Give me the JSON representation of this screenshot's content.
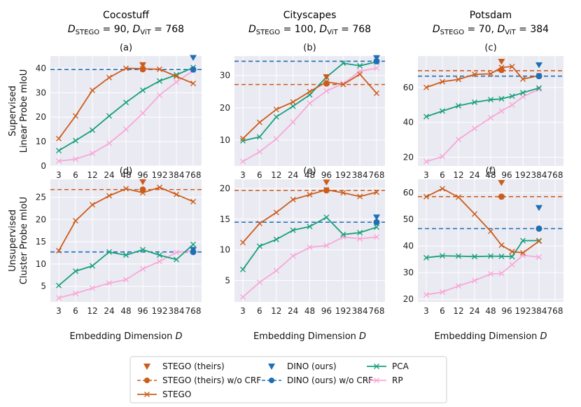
{
  "figure": {
    "column_titles": [
      {
        "name": "Cocostuff",
        "sub_a": "STEGO",
        "val_a": "90",
        "sub_b": "ViT",
        "val_b": "768"
      },
      {
        "name": "Cityscapes",
        "sub_a": "STEGO",
        "val_a": "100",
        "sub_b": "ViT",
        "val_b": "768"
      },
      {
        "name": "Potsdam",
        "sub_a": "STEGO",
        "val_a": "70",
        "sub_b": "ViT",
        "val_b": "384"
      }
    ],
    "row_labels": [
      [
        "Supervised",
        "Linear Probe mIoU"
      ],
      [
        "Unsupervised",
        "Cluster Probe mIoU"
      ]
    ],
    "xlabel": "Embedding Dimension D",
    "legend": [
      "STEGO (theirs)",
      "STEGO (theirs) w/o CRF",
      "STEGO",
      "DINO (ours)",
      "DINO (ours) w/o CRF",
      "PCA",
      "RP"
    ]
  },
  "colors": {
    "stego": "#cc5c1a",
    "dino": "#1f6fb4",
    "pca": "#16a07a",
    "rp": "#f7a8d8",
    "panel_bg": "#eaeaf2",
    "grid": "#ffffff"
  },
  "chart_data": [
    {
      "panel": "(a)",
      "type": "line",
      "xticks": [
        "3",
        "6",
        "12",
        "24",
        "48",
        "96",
        "192",
        "384",
        "768"
      ],
      "ylim": [
        0,
        45
      ],
      "yticks": [
        0,
        10,
        20,
        30,
        40
      ],
      "series": [
        {
          "name": "STEGO",
          "x_idx": [
            0,
            1,
            2,
            3,
            4,
            5,
            6,
            7,
            8
          ],
          "values": [
            11.2,
            20.5,
            31,
            36.2,
            40,
            39.8,
            39.6,
            36.7,
            33.8
          ]
        },
        {
          "name": "PCA",
          "x_idx": [
            0,
            1,
            2,
            3,
            4,
            5,
            6,
            7,
            8
          ],
          "values": [
            6.3,
            10.4,
            14.7,
            20.5,
            26,
            31,
            34.8,
            37.3,
            40.3
          ]
        },
        {
          "name": "RP",
          "x_idx": [
            0,
            1,
            2,
            3,
            4,
            5,
            6,
            7,
            8
          ],
          "values": [
            2,
            2.8,
            5.2,
            9.3,
            15,
            21.6,
            29,
            34.4,
            39
          ]
        }
      ],
      "hlines": {
        "stego_wo_crf": null,
        "dino_wo_crf": 39.5
      },
      "markers": {
        "stego_theirs": {
          "x_idx": 5,
          "y": 41.3
        },
        "stego_wo_crf_point": {
          "x_idx": 5,
          "y": 39.6
        },
        "dino_theirs": {
          "x_idx": 8,
          "y": 44.3
        },
        "dino_wo_crf_point": {
          "x_idx": 8,
          "y": 39.5
        }
      }
    },
    {
      "panel": "(b)",
      "type": "line",
      "xticks": [
        "3",
        "6",
        "12",
        "24",
        "48",
        "96",
        "192",
        "384",
        "768"
      ],
      "ylim": [
        2,
        36
      ],
      "yticks": [
        10,
        20,
        30
      ],
      "series": [
        {
          "name": "STEGO",
          "x_idx": [
            0,
            1,
            2,
            3,
            4,
            5,
            6,
            7,
            8
          ],
          "values": [
            10.5,
            15.5,
            19.5,
            21.8,
            25,
            28,
            27.2,
            30.4,
            24.5
          ]
        },
        {
          "name": "PCA",
          "x_idx": [
            0,
            1,
            2,
            3,
            4,
            5,
            6,
            7,
            8
          ],
          "values": [
            9.8,
            11,
            17.2,
            20.5,
            24,
            29.5,
            33.8,
            33,
            34.2
          ]
        },
        {
          "name": "RP",
          "x_idx": [
            0,
            1,
            2,
            3,
            4,
            5,
            6,
            7,
            8
          ],
          "values": [
            3.4,
            6.4,
            10.4,
            15.6,
            21.4,
            25.2,
            27.5,
            31.3,
            32.3
          ]
        }
      ],
      "hlines": {
        "stego_wo_crf": 27.2,
        "dino_wo_crf": 34.4
      },
      "markers": {
        "stego_theirs": {
          "x_idx": 5,
          "y": 29.5
        },
        "stego_wo_crf_point": {
          "x_idx": 5,
          "y": 27.5
        },
        "dino_theirs": {
          "x_idx": 8,
          "y": 35.4
        },
        "dino_wo_crf_point": {
          "x_idx": 8,
          "y": 34.4
        }
      }
    },
    {
      "panel": "(c)",
      "type": "line",
      "xticks": [
        "3",
        "6",
        "12",
        "24",
        "48",
        "96",
        "192",
        "384"
      ],
      "ylim": [
        15,
        78
      ],
      "yticks": [
        20,
        40,
        60
      ],
      "series": [
        {
          "name": "STEGO",
          "x_idx": [
            0,
            1,
            2,
            3,
            4,
            4.67,
            5.33,
            6,
            7
          ],
          "values": [
            60,
            63.3,
            64.6,
            67.5,
            67.8,
            71.5,
            72,
            64.8,
            66.8
          ]
        },
        {
          "name": "PCA",
          "x_idx": [
            0,
            1,
            2,
            3,
            4,
            4.67,
            5.33,
            6,
            7
          ],
          "values": [
            43.3,
            46.5,
            49.5,
            51.5,
            53,
            53.5,
            55,
            57,
            59.7
          ]
        },
        {
          "name": "RP",
          "x_idx": [
            0,
            1,
            2,
            3,
            4,
            4.67,
            5.33,
            6,
            7
          ],
          "values": [
            17.5,
            20.5,
            30.2,
            36.5,
            42.7,
            46.5,
            50,
            54.7,
            59
          ]
        }
      ],
      "hlines": {
        "stego_wo_crf": 69.6,
        "dino_wo_crf": 66.5
      },
      "markers": {
        "stego_theirs": {
          "x_idx": 4.67,
          "y": 74.8
        },
        "stego_wo_crf_point": {
          "x_idx": 4.67,
          "y": 70
        },
        "dino_theirs": {
          "x_idx": 7,
          "y": 72.8
        },
        "dino_wo_crf_point": {
          "x_idx": 7,
          "y": 66.5
        }
      }
    },
    {
      "panel": "(d)",
      "type": "line",
      "xticks": [
        "3",
        "6",
        "12",
        "24",
        "48",
        "96",
        "192",
        "384",
        "768"
      ],
      "ylim": [
        1.5,
        29
      ],
      "yticks": [
        5,
        10,
        15,
        20,
        25
      ],
      "series": [
        {
          "name": "STEGO",
          "x_idx": [
            0,
            1,
            2,
            3,
            4,
            5,
            6,
            7,
            8
          ],
          "values": [
            13,
            19.7,
            23.3,
            25.3,
            26.9,
            26,
            27.2,
            25.6,
            24
          ]
        },
        {
          "name": "PCA",
          "x_idx": [
            0,
            1,
            2,
            3,
            4,
            5,
            6,
            7,
            8
          ],
          "values": [
            5.2,
            8.4,
            9.6,
            12.7,
            12,
            13.2,
            12,
            11,
            14.4
          ]
        },
        {
          "name": "RP",
          "x_idx": [
            0,
            1,
            2,
            3,
            4,
            5,
            6,
            7,
            8
          ],
          "values": [
            2.4,
            3.4,
            4.6,
            5.7,
            6.5,
            8.9,
            10.6,
            12.6,
            13
          ]
        }
      ],
      "hlines": {
        "stego_wo_crf": 26.7,
        "dino_wo_crf": 12.7
      },
      "markers": {
        "stego_theirs": {
          "x_idx": 5,
          "y": 28.4
        },
        "stego_wo_crf_point": {
          "x_idx": 5,
          "y": 26.7
        },
        "dino_theirs": {
          "x_idx": 8,
          "y": 13.2
        },
        "dino_wo_crf_point": {
          "x_idx": 8,
          "y": 12.7
        }
      }
    },
    {
      "panel": "(e)",
      "type": "line",
      "xticks": [
        "3",
        "6",
        "12",
        "24",
        "48",
        "96",
        "192",
        "384",
        "768"
      ],
      "ylim": [
        1.5,
        21.5
      ],
      "yticks": [
        5,
        10,
        15,
        20
      ],
      "series": [
        {
          "name": "STEGO",
          "x_idx": [
            0,
            1,
            2,
            3,
            4,
            5,
            6,
            7,
            8
          ],
          "values": [
            11.2,
            14.3,
            16.1,
            18.2,
            19,
            19.8,
            19.3,
            18.7,
            19.4
          ]
        },
        {
          "name": "PCA",
          "x_idx": [
            0,
            1,
            2,
            3,
            4,
            5,
            6,
            7,
            8
          ],
          "values": [
            6.8,
            10.6,
            11.7,
            13.2,
            13.8,
            15.3,
            12.5,
            12.8,
            13.7
          ]
        },
        {
          "name": "RP",
          "x_idx": [
            0,
            1,
            2,
            3,
            4,
            5,
            6,
            7,
            8
          ],
          "values": [
            2.3,
            4.7,
            6.6,
            9,
            10.4,
            10.7,
            12.1,
            11.8,
            12.1
          ]
        }
      ],
      "hlines": {
        "stego_wo_crf": 19.7,
        "dino_wo_crf": 14.5
      },
      "markers": {
        "stego_theirs": {
          "x_idx": 5,
          "y": 21
        },
        "stego_wo_crf_point": {
          "x_idx": 5,
          "y": 19.7
        },
        "dino_theirs": {
          "x_idx": 8,
          "y": 15.3
        },
        "dino_wo_crf_point": {
          "x_idx": 8,
          "y": 14.5
        }
      }
    },
    {
      "panel": "(f)",
      "type": "line",
      "xticks": [
        "3",
        "6",
        "12",
        "24",
        "48",
        "96",
        "192",
        "384",
        "768"
      ],
      "ylim": [
        19,
        65
      ],
      "yticks": [
        20,
        30,
        40,
        50,
        60
      ],
      "series": [
        {
          "name": "STEGO",
          "x_idx": [
            0,
            1,
            2,
            3,
            4,
            4.67,
            5.33,
            6,
            7
          ],
          "values": [
            58.5,
            61.5,
            58.3,
            52,
            45.5,
            40.3,
            37.9,
            37.4,
            41.8
          ]
        },
        {
          "name": "PCA",
          "x_idx": [
            0,
            1,
            2,
            3,
            4,
            4.67,
            5.33,
            6,
            7
          ],
          "values": [
            35.6,
            36.3,
            36.2,
            36,
            36.2,
            36.1,
            36,
            42,
            42
          ]
        },
        {
          "name": "RP",
          "x_idx": [
            0,
            1,
            2,
            3,
            4,
            4.67,
            5.33,
            6,
            7
          ],
          "values": [
            21.7,
            22.7,
            25,
            27,
            29.5,
            29.7,
            33,
            36.5,
            35.8
          ]
        }
      ],
      "hlines": {
        "stego_wo_crf": 58.5,
        "dino_wo_crf": 46.5
      },
      "markers": {
        "stego_theirs": {
          "x_idx": 4.67,
          "y": 63.7
        },
        "stego_wo_crf_point": {
          "x_idx": 4.67,
          "y": 58.5
        },
        "dino_theirs": {
          "x_idx": 7,
          "y": 54.3
        },
        "dino_wo_crf_point": {
          "x_idx": 7,
          "y": 46.5
        }
      }
    }
  ]
}
